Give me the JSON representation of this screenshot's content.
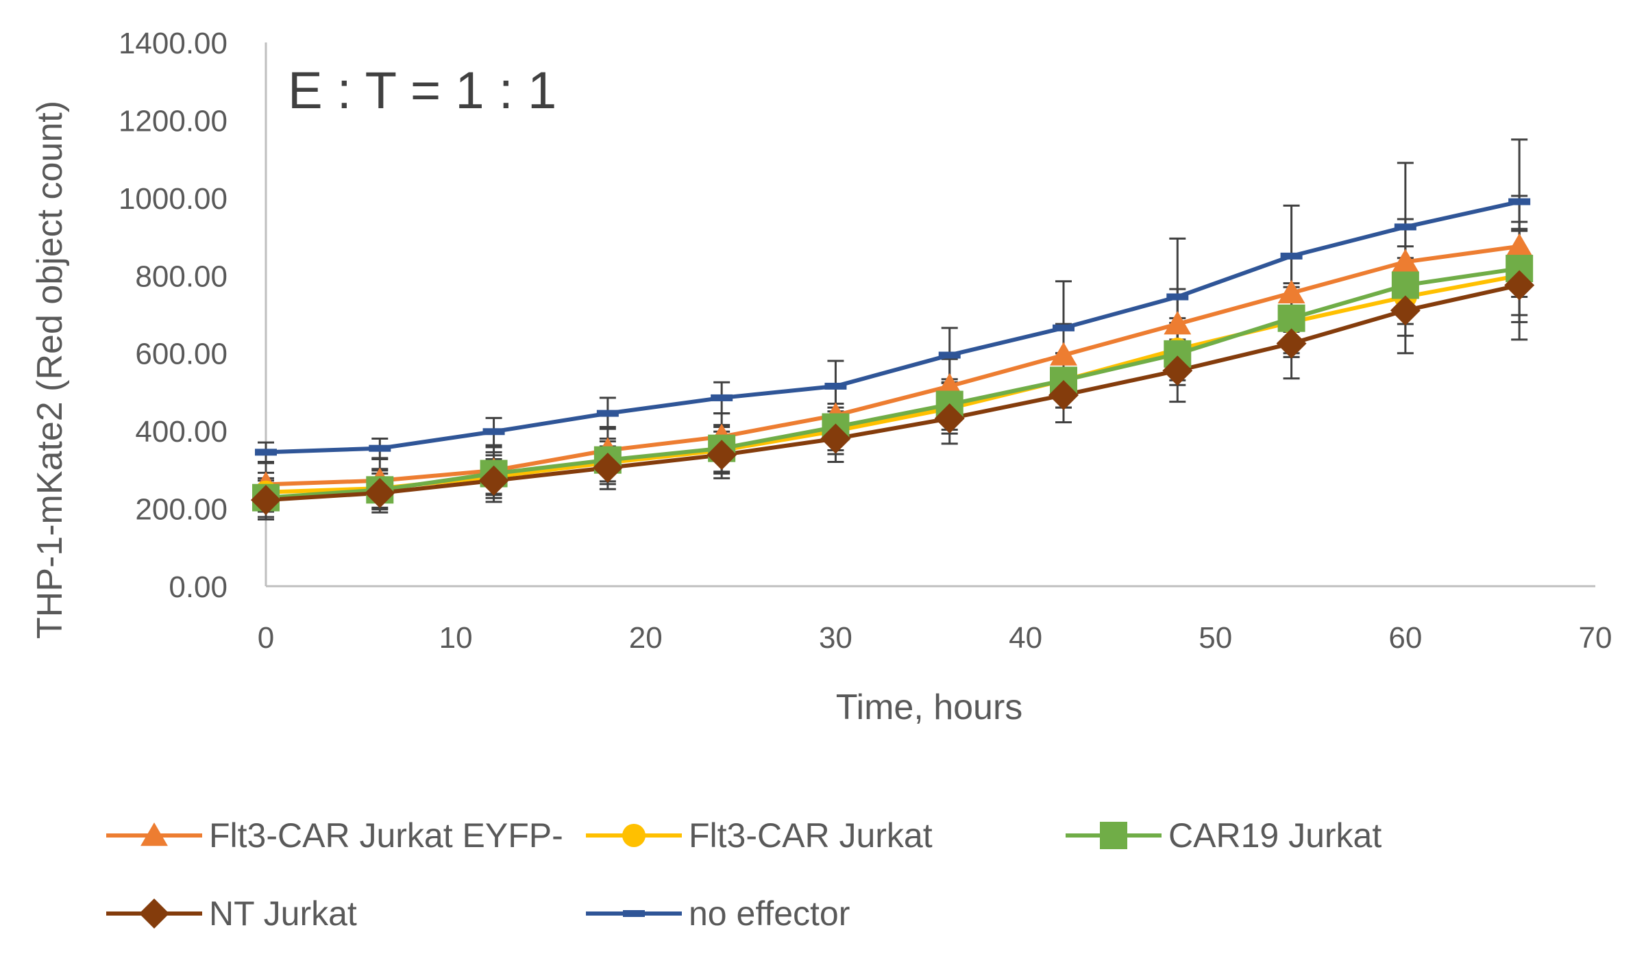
{
  "chart_data": {
    "type": "line",
    "title": "",
    "annotation": "E : T = 1 : 1",
    "xlabel": "Time, hours",
    "ylabel": "THP-1-mKate2 (Red object count)",
    "xlim": [
      0,
      70
    ],
    "ylim": [
      0,
      1400
    ],
    "xticks": [
      "0",
      "10",
      "20",
      "30",
      "40",
      "50",
      "60",
      "70"
    ],
    "yticks": [
      "0.00",
      "200.00",
      "400.00",
      "600.00",
      "800.00",
      "1000.00",
      "1200.00",
      "1400.00"
    ],
    "x": [
      0,
      6,
      12,
      18,
      24,
      30,
      36,
      42,
      48,
      54,
      60,
      66
    ],
    "grid": false,
    "legend_position": "bottom",
    "series": [
      {
        "name": "Flt3-CAR Jurkat EYFP-",
        "color": "#ED7D31",
        "marker": "triangle",
        "values": [
          262,
          272,
          298,
          350,
          385,
          440,
          515,
          595,
          675,
          755,
          835,
          875
        ],
        "errors": [
          55,
          55,
          60,
          60,
          60,
          70,
          70,
          80,
          90,
          100,
          110,
          130
        ]
      },
      {
        "name": "Flt3-CAR Jurkat",
        "color": "#FFC000",
        "marker": "circle",
        "values": [
          242,
          252,
          282,
          318,
          350,
          400,
          458,
          530,
          610,
          680,
          745,
          800
        ],
        "errors": [
          50,
          50,
          55,
          55,
          60,
          60,
          65,
          70,
          80,
          90,
          100,
          120
        ]
      },
      {
        "name": "CAR19 Jurkat",
        "color": "#70AD47",
        "marker": "square",
        "values": [
          228,
          248,
          290,
          325,
          355,
          410,
          468,
          530,
          598,
          690,
          775,
          818
        ],
        "errors": [
          50,
          50,
          55,
          55,
          60,
          60,
          65,
          70,
          80,
          90,
          100,
          120
        ]
      },
      {
        "name": "NT Jurkat",
        "color": "#843C0C",
        "marker": "diamond",
        "values": [
          222,
          240,
          272,
          305,
          338,
          380,
          432,
          492,
          555,
          625,
          710,
          775
        ],
        "errors": [
          50,
          50,
          55,
          55,
          60,
          60,
          65,
          70,
          80,
          90,
          110,
          140
        ]
      },
      {
        "name": "no effector",
        "color": "#2F5597",
        "marker": "dash",
        "values": [
          345,
          355,
          398,
          445,
          485,
          515,
          595,
          665,
          745,
          850,
          925,
          990
        ],
        "errors": [
          25,
          25,
          35,
          40,
          40,
          65,
          70,
          120,
          150,
          130,
          165,
          160
        ]
      }
    ]
  }
}
